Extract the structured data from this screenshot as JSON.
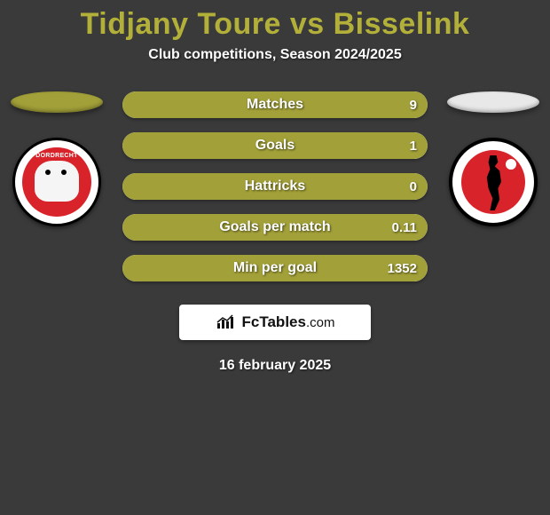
{
  "title_color": "#b3b03a",
  "background_color": "#3a3a3a",
  "header": {
    "title": "Tidjany Toure vs Bisselink",
    "subtitle": "Club competitions, Season 2024/2025"
  },
  "left": {
    "ellipse_color": "#a2a038",
    "badge_text": "DORDRECHT",
    "badge_ring": "#ffffff",
    "badge_inner": "#d8232a"
  },
  "right": {
    "ellipse_color": "#e8e8e8",
    "badge_ring": "#ffffff",
    "badge_inner": "#d8232a"
  },
  "stats": [
    {
      "label": "Matches",
      "left_pct": 100,
      "right_pct": 0,
      "left_color": "#a2a038",
      "right_color": "#e8e8e8",
      "right_value": "9"
    },
    {
      "label": "Goals",
      "left_pct": 100,
      "right_pct": 0,
      "left_color": "#a2a038",
      "right_color": "#e8e8e8",
      "right_value": "1"
    },
    {
      "label": "Hattricks",
      "left_pct": 100,
      "right_pct": 0,
      "left_color": "#a2a038",
      "right_color": "#e8e8e8",
      "right_value": "0"
    },
    {
      "label": "Goals per match",
      "left_pct": 100,
      "right_pct": 0,
      "left_color": "#a2a038",
      "right_color": "#e8e8e8",
      "right_value": "0.11"
    },
    {
      "label": "Min per goal",
      "left_pct": 100,
      "right_pct": 0,
      "left_color": "#a2a038",
      "right_color": "#e8e8e8",
      "right_value": "1352"
    }
  ],
  "bar_style": {
    "height": 30,
    "radius": 15,
    "gap": 16,
    "label_fontsize": 16,
    "value_fontsize": 15
  },
  "attribution": {
    "brand": "FcTables",
    "tld": ".com"
  },
  "date": "16 february 2025"
}
